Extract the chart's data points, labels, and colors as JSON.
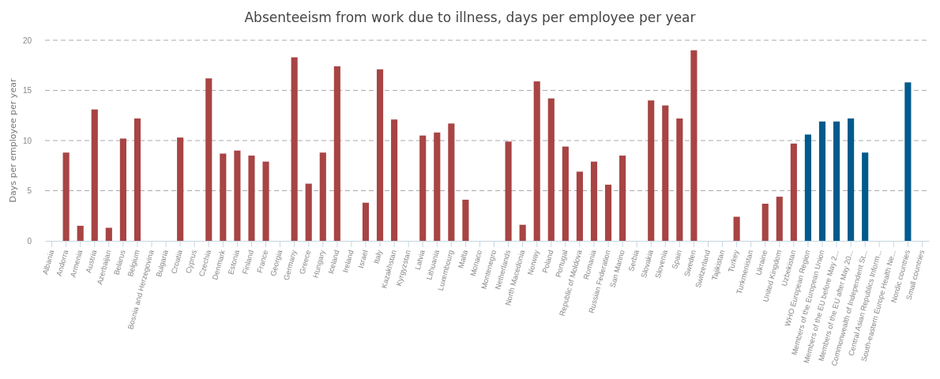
{
  "chart_data": {
    "type": "bar",
    "title": "Absenteeism from work due to illness, days per employee per year",
    "ylabel": "Days per employee per year",
    "categories": [
      "Albania",
      "Andorra",
      "Armenia",
      "Austria",
      "Azerbaijan",
      "Belarus",
      "Belgium",
      "Bosnia and Herzegovina",
      "Bulgaria",
      "Croatia",
      "Cyprus",
      "Czechia",
      "Denmark",
      "Estonia",
      "Finland",
      "France",
      "Georgia",
      "Germany",
      "Greece",
      "Hungary",
      "Iceland",
      "Ireland",
      "Israel",
      "Italy",
      "Kazakhstan",
      "Kyrgyzstan",
      "Latvia",
      "Lithuania",
      "Luxembourg",
      "Malta",
      "Monaco",
      "Montenegro",
      "Netherlands",
      "North Macedonia",
      "Norway",
      "Poland",
      "Portugal",
      "Republic of Moldova",
      "Romania",
      "Russian Federation",
      "San Marino",
      "Serbia",
      "Slovakia",
      "Slovenia",
      "Spain",
      "Sweden",
      "Switzerland",
      "Tajikistan",
      "Turkey",
      "Turkmenistan",
      "Ukraine",
      "United Kingdom",
      "Uzbekistan",
      "WHO European Region",
      "Members of the European Union",
      "Members of the EU before May 2...",
      "Members of the EU after May 20...",
      "Commonwealth of Independent St...",
      "Central Asian Republics Inform...",
      "South-eastern Europe Health Ne...",
      "Nordic countries",
      "Small countries"
    ],
    "values": [
      null,
      8.8,
      1.5,
      13.1,
      1.3,
      10.2,
      12.2,
      null,
      null,
      10.3,
      null,
      16.2,
      8.7,
      9.0,
      8.5,
      7.9,
      null,
      18.3,
      5.7,
      8.8,
      17.4,
      null,
      3.8,
      17.1,
      12.1,
      null,
      10.5,
      10.8,
      11.7,
      4.1,
      null,
      null,
      9.9,
      1.6,
      15.9,
      14.2,
      9.4,
      6.9,
      7.9,
      5.6,
      8.5,
      null,
      14.0,
      13.5,
      12.2,
      19.0,
      null,
      null,
      2.4,
      null,
      3.7,
      4.4,
      9.7,
      10.6,
      11.9,
      11.9,
      12.2,
      8.8,
      null,
      null,
      15.8,
      null
    ],
    "colors": [
      "#a84444",
      "#a84444",
      "#a84444",
      "#a84444",
      "#a84444",
      "#a84444",
      "#a84444",
      "#a84444",
      "#a84444",
      "#a84444",
      "#a84444",
      "#a84444",
      "#a84444",
      "#a84444",
      "#a84444",
      "#a84444",
      "#a84444",
      "#a84444",
      "#a84444",
      "#a84444",
      "#a84444",
      "#a84444",
      "#a84444",
      "#a84444",
      "#a84444",
      "#a84444",
      "#a84444",
      "#a84444",
      "#a84444",
      "#a84444",
      "#a84444",
      "#a84444",
      "#a84444",
      "#a84444",
      "#a84444",
      "#a84444",
      "#a84444",
      "#a84444",
      "#a84444",
      "#a84444",
      "#a84444",
      "#a84444",
      "#a84444",
      "#a84444",
      "#a84444",
      "#a84444",
      "#a84444",
      "#a84444",
      "#a84444",
      "#a84444",
      "#a84444",
      "#a84444",
      "#a84444",
      "#005a8c",
      "#005a8c",
      "#005a8c",
      "#005a8c",
      "#005a8c",
      "#005a8c",
      "#005a8c",
      "#005a8c",
      "#005a8c"
    ],
    "ylim": [
      0,
      20
    ],
    "yticks": [
      0,
      5,
      10,
      15,
      20
    ],
    "grid": "y"
  }
}
